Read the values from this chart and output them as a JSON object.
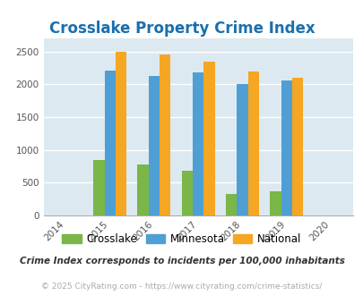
{
  "title": "Crosslake Property Crime Index",
  "years": [
    2015,
    2016,
    2017,
    2018,
    2019
  ],
  "crosslake": [
    850,
    780,
    680,
    320,
    370
  ],
  "minnesota": [
    2210,
    2120,
    2180,
    2000,
    2060
  ],
  "national": [
    2500,
    2450,
    2350,
    2200,
    2100
  ],
  "xlim": [
    2013.5,
    2020.5
  ],
  "ylim": [
    0,
    2700
  ],
  "yticks": [
    0,
    500,
    1000,
    1500,
    2000,
    2500
  ],
  "xticks": [
    2014,
    2015,
    2016,
    2017,
    2018,
    2019,
    2020
  ],
  "bar_width": 0.25,
  "color_crosslake": "#7ab648",
  "color_minnesota": "#4f9fd4",
  "color_national": "#f5a623",
  "title_color": "#1a6faf",
  "bg_color": "#dce9f0",
  "grid_color": "#ffffff",
  "footer_note": "Crime Index corresponds to incidents per 100,000 inhabitants",
  "copyright": "© 2025 CityRating.com - https://www.cityrating.com/crime-statistics/",
  "title_fontsize": 12,
  "tick_label_fontsize": 7.5,
  "legend_fontsize": 8.5,
  "footer_fontsize": 7.5,
  "copyright_fontsize": 6.5
}
